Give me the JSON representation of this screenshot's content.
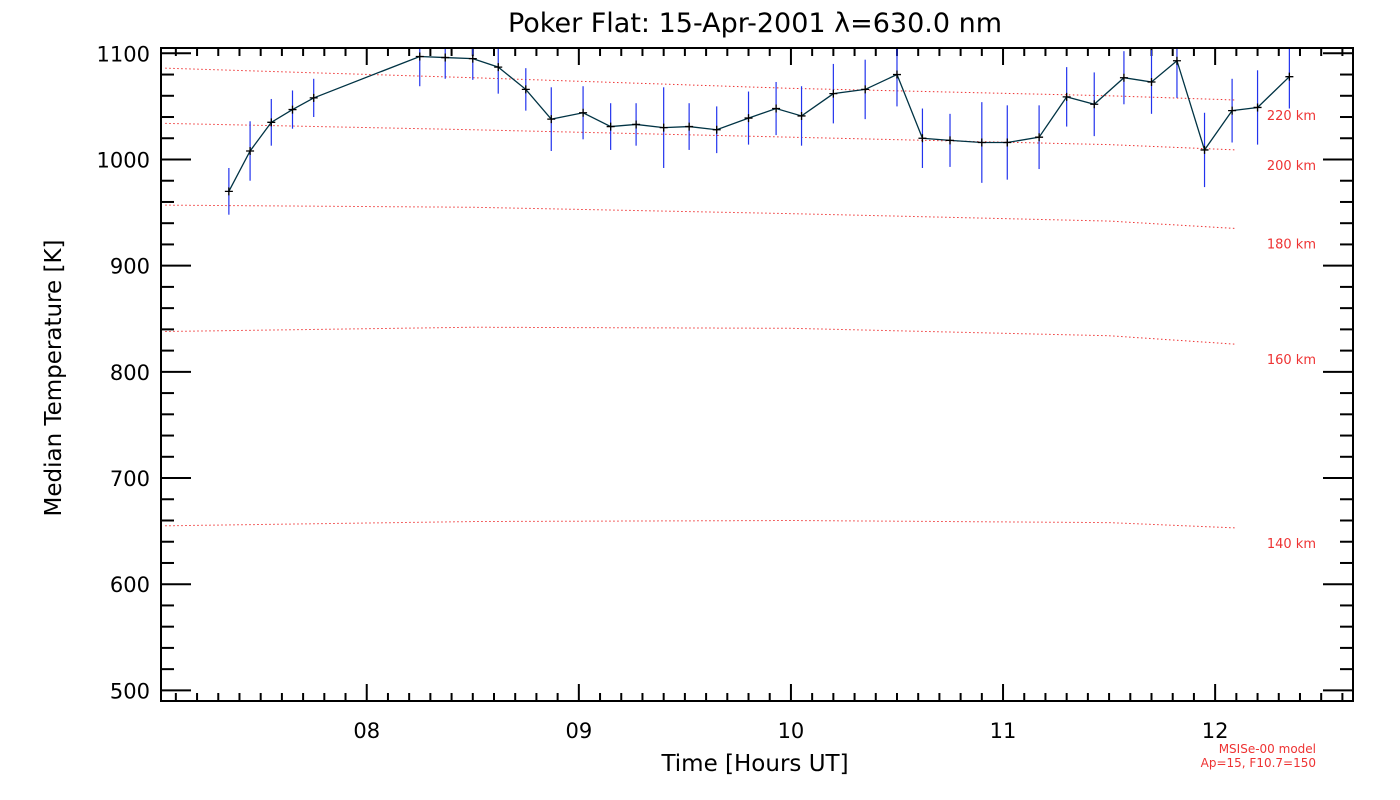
{
  "chart_data": {
    "type": "line",
    "title": "Poker Flat: 15-Apr-2001 λ=630.0 nm",
    "xlabel": "Time [Hours UT]",
    "ylabel": "Median Temperature [K]",
    "xlim": [
      7.03,
      12.65
    ],
    "ylim": [
      490,
      1105
    ],
    "x_ticks": [
      8,
      9,
      10,
      11,
      12
    ],
    "x_tick_labels": [
      "08",
      "09",
      "10",
      "11",
      "12"
    ],
    "y_ticks": [
      500,
      600,
      700,
      800,
      900,
      1000,
      1100
    ],
    "y_tick_labels": [
      "500",
      "600",
      "700",
      "800",
      "900",
      "1000",
      "1100"
    ],
    "grid": false,
    "series": [
      {
        "color": "#003344",
        "marker": "plus",
        "errorbar_color": "#2233ee",
        "x": [
          7.35,
          7.45,
          7.55,
          7.65,
          7.75,
          8.25,
          8.37,
          8.5,
          8.62,
          8.75,
          8.87,
          9.02,
          9.15,
          9.27,
          9.4,
          9.52,
          9.65,
          9.8,
          9.93,
          10.05,
          10.2,
          10.35,
          10.5,
          10.62,
          10.75,
          10.9,
          11.02,
          11.17,
          11.3,
          11.43,
          11.57,
          11.7,
          11.82,
          11.95,
          12.08,
          12.2,
          12.35
        ],
        "y": [
          970,
          1008,
          1035,
          1047,
          1058,
          1097,
          1096,
          1095,
          1087,
          1066,
          1038,
          1044,
          1031,
          1033,
          1030,
          1031,
          1028,
          1039,
          1048,
          1041,
          1062,
          1066,
          1080,
          1020,
          1018,
          1016,
          1016,
          1021,
          1059,
          1052,
          1077,
          1073,
          1093,
          1009,
          1046,
          1049,
          1078
        ],
        "err": [
          22,
          28,
          22,
          18,
          18,
          28,
          20,
          20,
          25,
          20,
          30,
          25,
          22,
          20,
          38,
          22,
          22,
          25,
          25,
          28,
          28,
          28,
          30,
          28,
          25,
          38,
          35,
          30,
          28,
          30,
          25,
          30,
          35,
          35,
          30,
          35,
          30
        ]
      }
    ],
    "model_lines": [
      {
        "label": "140 km",
        "x": [
          7.05,
          8.5,
          10.0,
          11.5,
          12.1
        ],
        "y": [
          655,
          659,
          660,
          658,
          653
        ]
      },
      {
        "label": "160 km",
        "x": [
          7.05,
          8.5,
          10.0,
          11.5,
          12.1
        ],
        "y": [
          838,
          842,
          841,
          834,
          826
        ]
      },
      {
        "label": "180 km",
        "x": [
          7.05,
          8.5,
          10.0,
          11.5,
          12.1
        ],
        "y": [
          957,
          955,
          949,
          942,
          935
        ]
      },
      {
        "label": "200 km",
        "x": [
          7.05,
          8.5,
          10.0,
          11.5,
          12.1
        ],
        "y": [
          1034,
          1028,
          1021,
          1014,
          1009
        ]
      },
      {
        "label": "220 km",
        "x": [
          7.05,
          8.5,
          10.0,
          11.5,
          12.1
        ],
        "y": [
          1086,
          1077,
          1067,
          1060,
          1056
        ]
      }
    ],
    "model_color": "#ee3333",
    "annotations": [
      "MSISe-00 model",
      "Ap=15, F10.7=150"
    ]
  }
}
